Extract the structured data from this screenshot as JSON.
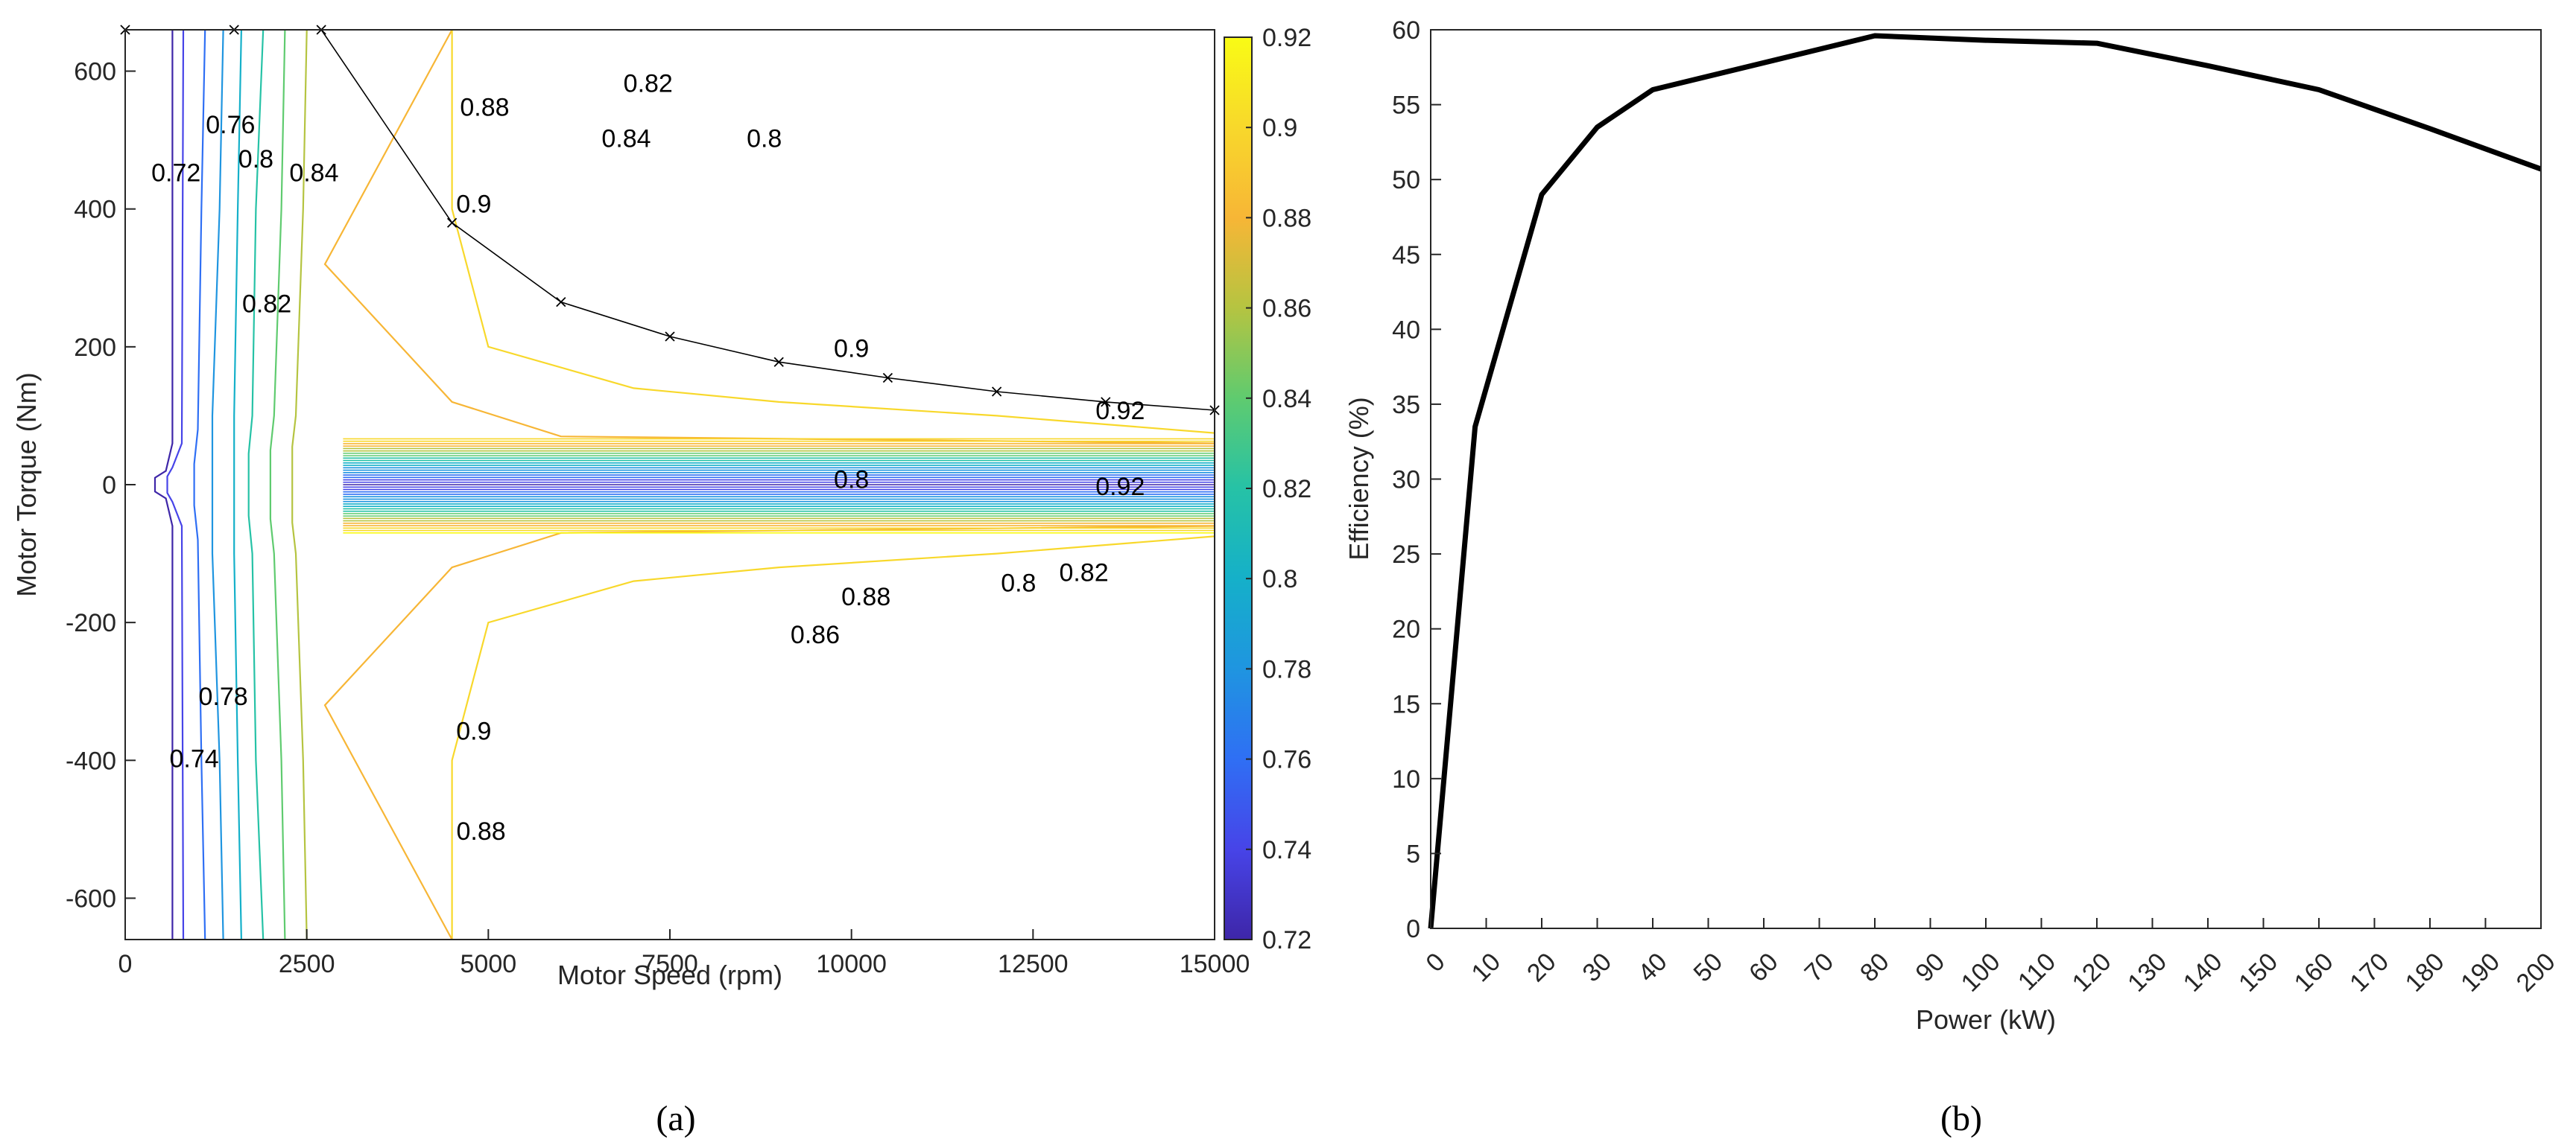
{
  "chart_data": [
    {
      "id": "a",
      "type": "contour",
      "caption": "(a)",
      "xlabel": "Motor Speed (rpm)",
      "ylabel": "Motor Torque (Nm)",
      "xlim": [
        0,
        15000
      ],
      "ylim": [
        -660,
        660
      ],
      "xticks": [
        0,
        2500,
        5000,
        7500,
        10000,
        12500,
        15000
      ],
      "xtick_labels": [
        "0",
        "2500",
        "5000",
        "7500",
        "10000",
        "12500",
        "15000"
      ],
      "yticks": [
        -600,
        -400,
        -200,
        0,
        200,
        400,
        600
      ],
      "ytick_labels": [
        "-600",
        "-400",
        "-200",
        "0",
        "200",
        "400",
        "600"
      ],
      "colorbar": {
        "range": [
          0.72,
          0.92
        ],
        "ticks": [
          0.72,
          0.74,
          0.76,
          0.78,
          0.8,
          0.82,
          0.84,
          0.86,
          0.88,
          0.9,
          0.92
        ],
        "tick_labels": [
          "0.72",
          "0.74",
          "0.76",
          "0.78",
          "0.8",
          "0.82",
          "0.84",
          "0.86",
          "0.88",
          "0.9",
          "0.92"
        ],
        "colors": [
          "#3e26a8",
          "#4744e8",
          "#2f6ff4",
          "#1f95e0",
          "#15b0c9",
          "#26c2a6",
          "#5fcb6f",
          "#b5c441",
          "#f7b636",
          "#f8d82b",
          "#f9fb15"
        ]
      },
      "max_torque_curve": {
        "speed": [
          0,
          1500,
          2700,
          4500,
          6000,
          7500,
          9000,
          10500,
          12000,
          13500,
          15000
        ],
        "torque": [
          660,
          660,
          660,
          380,
          265,
          215,
          178,
          155,
          135,
          120,
          108
        ]
      },
      "contour_lines": [
        {
          "level": 0.72,
          "x": [
            650,
            650,
            560,
            410,
            410,
            560,
            650,
            650
          ],
          "y": [
            660,
            60,
            20,
            10,
            -10,
            -20,
            -60,
            -660
          ]
        },
        {
          "level": 0.74,
          "x": [
            800,
            780,
            650,
            580,
            580,
            650,
            780,
            800
          ],
          "y": [
            660,
            60,
            25,
            12,
            -12,
            -25,
            -60,
            -660
          ]
        },
        {
          "level": 0.76,
          "x": [
            1100,
            1050,
            1000,
            950,
            950,
            1000,
            1050,
            1100
          ],
          "y": [
            660,
            400,
            80,
            30,
            -30,
            -80,
            -400,
            -660
          ]
        },
        {
          "level": 0.78,
          "x": [
            1350,
            1300,
            1200,
            1200,
            1200,
            1200,
            1300,
            1350
          ],
          "y": [
            660,
            400,
            100,
            35,
            -35,
            -100,
            -400,
            -660
          ]
        },
        {
          "level": 0.8,
          "x": [
            1600,
            1550,
            1500,
            1500,
            1500,
            1500,
            1550,
            1600
          ],
          "y": [
            660,
            400,
            100,
            40,
            -40,
            -100,
            -400,
            -660
          ]
        },
        {
          "level": 0.82,
          "x": [
            1900,
            1800,
            1750,
            1700,
            1700,
            1750,
            1800,
            1900
          ],
          "y": [
            660,
            400,
            100,
            45,
            -45,
            -100,
            -400,
            -660
          ]
        },
        {
          "level": 0.84,
          "x": [
            2200,
            2150,
            2050,
            2000,
            2000,
            2050,
            2150,
            2200
          ],
          "y": [
            660,
            400,
            100,
            50,
            -50,
            -100,
            -400,
            -660
          ]
        },
        {
          "level": 0.86,
          "x": [
            2500,
            2450,
            2350,
            2300,
            2300,
            2350,
            2450,
            2500
          ],
          "y": [
            660,
            400,
            100,
            55,
            -55,
            -100,
            -400,
            -660
          ]
        },
        {
          "level": 0.88,
          "x": [
            4500,
            2750,
            4500,
            6000,
            15000
          ],
          "y": [
            660,
            320,
            120,
            70,
            60
          ]
        },
        {
          "level": 0.9,
          "x": [
            4500,
            4500,
            5000,
            7000,
            9000,
            12000,
            15000
          ],
          "y": [
            660,
            400,
            200,
            140,
            120,
            100,
            75
          ]
        },
        {
          "level": 0.9,
          "x": [
            4500,
            4500,
            5000,
            7000,
            9000,
            12000,
            15000
          ],
          "y": [
            -660,
            -400,
            -200,
            -140,
            -120,
            -100,
            -75
          ]
        },
        {
          "level": 0.88,
          "x": [
            4500,
            2750,
            4500,
            6000,
            15000
          ],
          "y": [
            -660,
            -320,
            -120,
            -70,
            -60
          ]
        }
      ],
      "contour_labels": [
        {
          "text": "0.72",
          "x": 700,
          "y": 440
        },
        {
          "text": "0.76",
          "x": 1450,
          "y": 510
        },
        {
          "text": "0.8",
          "x": 1800,
          "y": 460
        },
        {
          "text": "0.84",
          "x": 2600,
          "y": 440
        },
        {
          "text": "0.82",
          "x": 1950,
          "y": 250
        },
        {
          "text": "0.88",
          "x": 4950,
          "y": 535
        },
        {
          "text": "0.82",
          "x": 7200,
          "y": 570
        },
        {
          "text": "0.84",
          "x": 6900,
          "y": 490
        },
        {
          "text": "0.8",
          "x": 8800,
          "y": 490
        },
        {
          "text": "0.9",
          "x": 4800,
          "y": 395
        },
        {
          "text": "0.9",
          "x": 10000,
          "y": 185
        },
        {
          "text": "0.92",
          "x": 13700,
          "y": 95
        },
        {
          "text": "0.8",
          "x": 10000,
          "y": -5
        },
        {
          "text": "0.92",
          "x": 13700,
          "y": -15
        },
        {
          "text": "0.88",
          "x": 10200,
          "y": -175
        },
        {
          "text": "0.86",
          "x": 9500,
          "y": -230
        },
        {
          "text": "0.8",
          "x": 12300,
          "y": -155
        },
        {
          "text": "0.82",
          "x": 13200,
          "y": -140
        },
        {
          "text": "0.78",
          "x": 1350,
          "y": -320
        },
        {
          "text": "0.74",
          "x": 950,
          "y": -410
        },
        {
          "text": "0.9",
          "x": 4800,
          "y": -370
        },
        {
          "text": "0.88",
          "x": 4900,
          "y": -515
        }
      ]
    },
    {
      "id": "b",
      "type": "line",
      "caption": "(b)",
      "xlabel": "Power (kW)",
      "ylabel": "Efficiency (%)",
      "xlim": [
        0,
        200
      ],
      "ylim": [
        0,
        60
      ],
      "xticks": [
        0,
        10,
        20,
        30,
        40,
        50,
        60,
        70,
        80,
        90,
        100,
        110,
        120,
        130,
        140,
        150,
        160,
        170,
        180,
        190,
        200
      ],
      "xtick_labels": [
        "0",
        "10",
        "20",
        "30",
        "40",
        "50",
        "60",
        "70",
        "80",
        "90",
        "100",
        "110",
        "120",
        "130",
        "140",
        "150",
        "160",
        "170",
        "180",
        "190",
        "200"
      ],
      "yticks": [
        0,
        5,
        10,
        15,
        20,
        25,
        30,
        35,
        40,
        45,
        50,
        55,
        60
      ],
      "ytick_labels": [
        "0",
        "5",
        "10",
        "15",
        "20",
        "25",
        "30",
        "35",
        "40",
        "45",
        "50",
        "55",
        "60"
      ],
      "series": [
        {
          "name": "efficiency",
          "x": [
            0,
            8,
            20,
            30,
            40,
            60,
            80,
            100,
            120,
            140,
            160,
            180,
            200
          ],
          "y": [
            0,
            33.5,
            49,
            53.5,
            56,
            57.8,
            59.6,
            59.3,
            59.1,
            57.6,
            56,
            53.4,
            50.7
          ]
        }
      ]
    }
  ]
}
